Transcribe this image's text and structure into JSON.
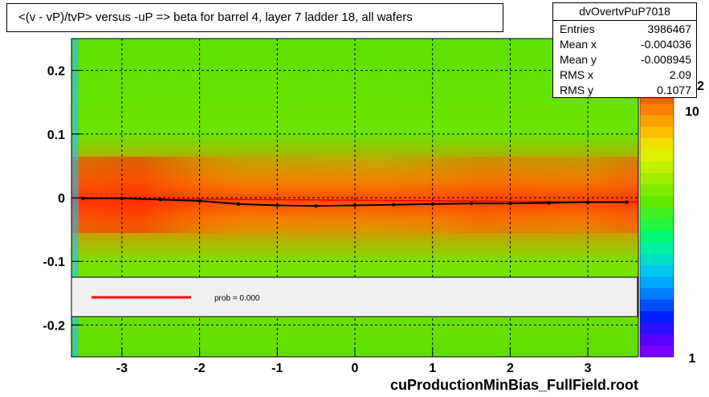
{
  "title": "<(v - vP)/tvP> versus  -uP => beta for barrel 4, layer 7 ladder 18, all wafers",
  "stats": {
    "name": "dvOvertvPuP7018",
    "rows": [
      {
        "label": "Entries",
        "value": "3986467"
      },
      {
        "label": "Mean x",
        "value": "-0.004036"
      },
      {
        "label": "Mean y",
        "value": "-0.008945"
      },
      {
        "label": "RMS x",
        "value": "2.09"
      },
      {
        "label": "RMS y",
        "value": "0.1077"
      }
    ]
  },
  "legend": {
    "fit_text": "prob = 0.000"
  },
  "filename": "cuProductionMinBias_FullField.root",
  "colors": {
    "fit_line": "#ff0000",
    "profile_points": "#000000"
  },
  "chart_data": {
    "type": "heatmap",
    "xlim": [
      -3.65,
      3.65
    ],
    "ylim": [
      -0.25,
      0.25
    ],
    "x_ticks": [
      -3,
      -2,
      -1,
      0,
      1,
      2,
      3
    ],
    "y_ticks": [
      -0.2,
      -0.1,
      0,
      0.1,
      0.2
    ],
    "y_tick_labels": [
      "-0.2",
      "-0.1",
      "0",
      "0.1",
      "0.2"
    ],
    "z_scale": "log",
    "z_ticks": [
      1,
      10
    ],
    "z_tick_labels": [
      "1",
      "10"
    ],
    "z_partial_label": "2",
    "grid": true,
    "profile": {
      "x": [
        -3.5,
        -3.0,
        -2.5,
        -2.0,
        -1.5,
        -1.0,
        -0.5,
        0.0,
        0.5,
        1.0,
        1.5,
        2.0,
        2.5,
        3.0,
        3.5
      ],
      "y": [
        -0.001,
        -0.001,
        -0.003,
        -0.005,
        -0.01,
        -0.012,
        -0.013,
        -0.012,
        -0.011,
        -0.01,
        -0.009,
        -0.009,
        -0.008,
        -0.007,
        -0.007
      ]
    },
    "fit": {
      "prob": 0.0
    }
  }
}
